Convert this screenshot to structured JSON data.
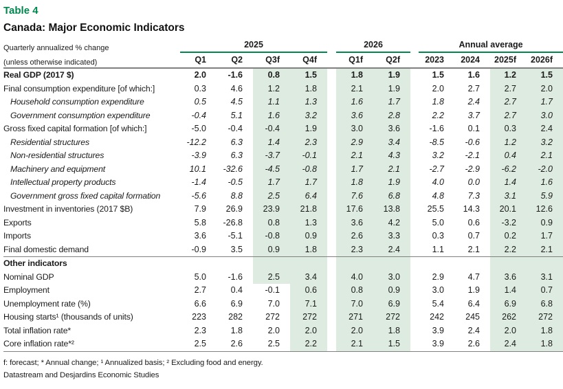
{
  "title": "Table 4",
  "subtitle": "Canada: Major Economic Indicators",
  "unit_note": {
    "line1": "Quarterly annualized % change",
    "line2": "(unless otherwise indicated)"
  },
  "header": {
    "groups": [
      {
        "label": "2025"
      },
      {
        "label": "2026"
      },
      {
        "label": "Annual average"
      }
    ],
    "columns": [
      "Q1",
      "Q2",
      "Q3f",
      "Q4f",
      "Q1f",
      "Q2f",
      "2023",
      "2024",
      "2025f",
      "2026f"
    ]
  },
  "sections": [
    {
      "rows": [
        {
          "label": "Real GDP (2017 $)",
          "style": "bold",
          "values": [
            "2.0",
            "-1.6",
            "0.8",
            "1.5",
            "1.8",
            "1.9",
            "1.5",
            "1.6",
            "1.2",
            "1.5"
          ]
        },
        {
          "label": "Final consumption expenditure [of which:]",
          "style": "",
          "values": [
            "0.3",
            "4.6",
            "1.2",
            "1.8",
            "2.1",
            "1.9",
            "2.0",
            "2.7",
            "2.7",
            "2.0"
          ]
        },
        {
          "label": "Household consumption expenditure",
          "style": "italic",
          "values": [
            "0.5",
            "4.5",
            "1.1",
            "1.3",
            "1.6",
            "1.7",
            "1.8",
            "2.4",
            "2.7",
            "1.7"
          ]
        },
        {
          "label": "Government consumption expenditure",
          "style": "italic",
          "values": [
            "-0.4",
            "5.1",
            "1.6",
            "3.2",
            "3.6",
            "2.8",
            "2.2",
            "3.7",
            "2.7",
            "3.0"
          ]
        },
        {
          "label": "Gross fixed capital formation [of which:]",
          "style": "",
          "values": [
            "-5.0",
            "-0.4",
            "-0.4",
            "1.9",
            "3.0",
            "3.6",
            "-1.6",
            "0.1",
            "0.3",
            "2.4"
          ]
        },
        {
          "label": "Residential structures",
          "style": "italic",
          "values": [
            "-12.2",
            "6.3",
            "1.4",
            "2.3",
            "2.9",
            "3.4",
            "-8.5",
            "-0.6",
            "1.2",
            "3.2"
          ]
        },
        {
          "label": "Non-residential structures",
          "style": "italic",
          "values": [
            "-3.9",
            "6.3",
            "-3.7",
            "-0.1",
            "2.1",
            "4.3",
            "3.2",
            "-2.1",
            "0.4",
            "2.1"
          ]
        },
        {
          "label": "Machinery and equipment",
          "style": "italic",
          "values": [
            "10.1",
            "-32.6",
            "-4.5",
            "-0.8",
            "1.7",
            "2.1",
            "-2.7",
            "-2.9",
            "-6.2",
            "-2.0"
          ]
        },
        {
          "label": "Intellectual property products",
          "style": "italic",
          "values": [
            "-1.4",
            "-0.5",
            "1.7",
            "1.7",
            "1.8",
            "1.9",
            "4.0",
            "0.0",
            "1.4",
            "1.6"
          ]
        },
        {
          "label": "Government gross fixed capital formation",
          "style": "italic",
          "values": [
            "-5.6",
            "8.8",
            "2.5",
            "6.4",
            "7.6",
            "6.8",
            "4.8",
            "7.3",
            "3.1",
            "5.9"
          ]
        },
        {
          "label": "Investment in inventories (2017 $B)",
          "style": "",
          "values": [
            "7.9",
            "26.9",
            "23.9",
            "21.8",
            "17.6",
            "13.8",
            "25.5",
            "14.3",
            "20.1",
            "12.6"
          ]
        },
        {
          "label": "Exports",
          "style": "",
          "values": [
            "5.8",
            "-26.8",
            "0.8",
            "1.3",
            "3.6",
            "4.2",
            "5.0",
            "0.6",
            "-3.2",
            "0.9"
          ]
        },
        {
          "label": "Imports",
          "style": "",
          "values": [
            "3.6",
            "-5.1",
            "-0.8",
            "0.9",
            "2.6",
            "3.3",
            "0.3",
            "0.7",
            "0.2",
            "1.7"
          ]
        },
        {
          "label": "Final domestic demand",
          "style": "",
          "values": [
            "-0.9",
            "3.5",
            "0.9",
            "1.8",
            "2.3",
            "2.4",
            "1.1",
            "2.1",
            "2.2",
            "2.1"
          ]
        }
      ]
    },
    {
      "heading": "Other indicators",
      "rows": [
        {
          "label": "Nominal GDP",
          "style": "",
          "values": [
            "5.0",
            "-1.6",
            "2.5",
            "3.4",
            "4.0",
            "3.0",
            "2.9",
            "4.7",
            "3.6",
            "3.1"
          ]
        },
        {
          "label": "Employment",
          "style": "",
          "q3_white": true,
          "values": [
            "2.7",
            "0.4",
            "-0.1",
            "0.6",
            "0.8",
            "0.9",
            "3.0",
            "1.9",
            "1.4",
            "0.7"
          ]
        },
        {
          "label": "Unemployment rate (%)",
          "style": "",
          "q3_white": true,
          "values": [
            "6.6",
            "6.9",
            "7.0",
            "7.1",
            "7.0",
            "6.9",
            "5.4",
            "6.4",
            "6.9",
            "6.8"
          ]
        },
        {
          "label": "Housing starts¹ (thousands of units)",
          "style": "",
          "q3_white": true,
          "values": [
            "223",
            "282",
            "272",
            "272",
            "271",
            "272",
            "242",
            "245",
            "262",
            "272"
          ]
        },
        {
          "label": "Total inflation rate*",
          "style": "",
          "q3_white": true,
          "values": [
            "2.3",
            "1.8",
            "2.0",
            "2.0",
            "2.0",
            "1.8",
            "3.9",
            "2.4",
            "2.0",
            "1.8"
          ]
        },
        {
          "label": "Core inflation rate*²",
          "style": "",
          "q3_white": true,
          "values": [
            "2.5",
            "2.6",
            "2.5",
            "2.2",
            "2.1",
            "1.5",
            "3.9",
            "2.6",
            "2.4",
            "1.8"
          ]
        }
      ]
    }
  ],
  "footnotes": {
    "line1": "f: forecast; * Annual change; ¹ Annualized basis; ² Excluding food and energy.",
    "line2": "Datastream and Desjardins Economic Studies"
  },
  "colors": {
    "accent_green": "#00874E",
    "band_green": "#DEEBE0",
    "rule_gray": "#808080"
  }
}
